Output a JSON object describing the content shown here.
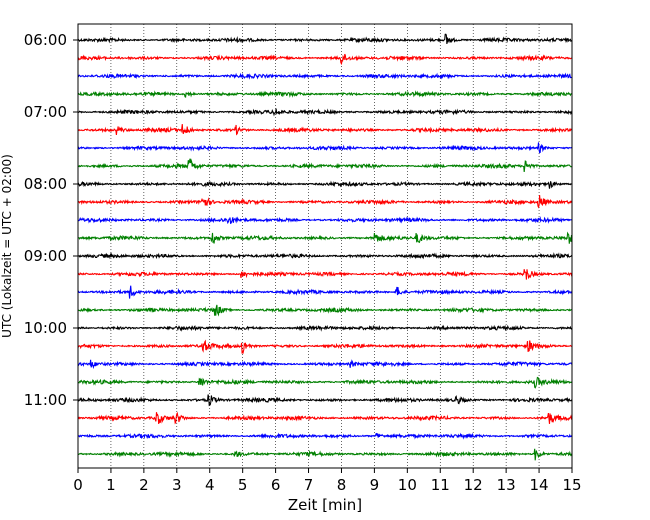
{
  "chart_data": {
    "type": "line",
    "xlabel": "Zeit  [min]",
    "ylabel": "UTC (Lokalzeit = UTC + 02:00)",
    "xlim": [
      0,
      15
    ],
    "x_ticks": [
      0,
      1,
      2,
      3,
      4,
      5,
      6,
      7,
      8,
      9,
      10,
      11,
      12,
      13,
      14,
      15
    ],
    "x_tick_labels": [
      "0",
      "1",
      "2",
      "3",
      "4",
      "5",
      "6",
      "7",
      "8",
      "9",
      "10",
      "11",
      "12",
      "13",
      "14",
      "15"
    ],
    "y_ticks": [
      "06:00",
      "07:00",
      "08:00",
      "09:00",
      "10:00",
      "11:00"
    ],
    "grid": "vertical dotted lines at each minute",
    "trace_start_times": [
      "06:00",
      "06:15",
      "06:30",
      "06:45",
      "07:00",
      "07:15",
      "07:30",
      "07:45",
      "08:00",
      "08:15",
      "08:30",
      "08:45",
      "09:00",
      "09:15",
      "09:30",
      "09:45",
      "10:00",
      "10:15",
      "10:30",
      "10:45",
      "11:00",
      "11:15",
      "11:30",
      "11:45"
    ],
    "trace_colors": [
      "#000000",
      "#ff0000",
      "#0000ff",
      "#008000"
    ],
    "events": [
      {
        "trace": 0,
        "t": 11.2,
        "a": 6
      },
      {
        "trace": 1,
        "t": 8.0,
        "a": 6
      },
      {
        "trace": 3,
        "t": 3.3,
        "a": 3
      },
      {
        "trace": 4,
        "t": 6.0,
        "a": 3
      },
      {
        "trace": 5,
        "t": 1.2,
        "a": 4
      },
      {
        "trace": 5,
        "t": 3.2,
        "a": 7
      },
      {
        "trace": 5,
        "t": 4.8,
        "a": 4
      },
      {
        "trace": 6,
        "t": 14.0,
        "a": 5
      },
      {
        "trace": 7,
        "t": 3.4,
        "a": 7
      },
      {
        "trace": 7,
        "t": 13.6,
        "a": 6
      },
      {
        "trace": 8,
        "t": 14.3,
        "a": 5
      },
      {
        "trace": 9,
        "t": 3.8,
        "a": 7
      },
      {
        "trace": 9,
        "t": 14.0,
        "a": 8
      },
      {
        "trace": 10,
        "t": 4.6,
        "a": 3
      },
      {
        "trace": 11,
        "t": 4.1,
        "a": 7
      },
      {
        "trace": 11,
        "t": 9.0,
        "a": 6
      },
      {
        "trace": 11,
        "t": 10.3,
        "a": 6
      },
      {
        "trace": 11,
        "t": 14.9,
        "a": 5
      },
      {
        "trace": 13,
        "t": 5.0,
        "a": 4
      },
      {
        "trace": 13,
        "t": 13.6,
        "a": 7
      },
      {
        "trace": 14,
        "t": 1.6,
        "a": 6
      },
      {
        "trace": 14,
        "t": 9.7,
        "a": 5
      },
      {
        "trace": 15,
        "t": 4.2,
        "a": 6
      },
      {
        "trace": 17,
        "t": 3.8,
        "a": 6
      },
      {
        "trace": 17,
        "t": 5.0,
        "a": 8
      },
      {
        "trace": 17,
        "t": 13.7,
        "a": 5
      },
      {
        "trace": 18,
        "t": 0.4,
        "a": 4
      },
      {
        "trace": 18,
        "t": 8.3,
        "a": 3
      },
      {
        "trace": 19,
        "t": 3.7,
        "a": 7
      },
      {
        "trace": 19,
        "t": 13.9,
        "a": 5
      },
      {
        "trace": 20,
        "t": 4.0,
        "a": 5
      },
      {
        "trace": 20,
        "t": 11.5,
        "a": 4
      },
      {
        "trace": 21,
        "t": 2.4,
        "a": 7
      },
      {
        "trace": 21,
        "t": 3.0,
        "a": 5
      },
      {
        "trace": 21,
        "t": 14.3,
        "a": 6
      },
      {
        "trace": 22,
        "t": 9.1,
        "a": 3
      },
      {
        "trace": 23,
        "t": 4.8,
        "a": 3
      },
      {
        "trace": 23,
        "t": 13.9,
        "a": 6
      }
    ]
  }
}
